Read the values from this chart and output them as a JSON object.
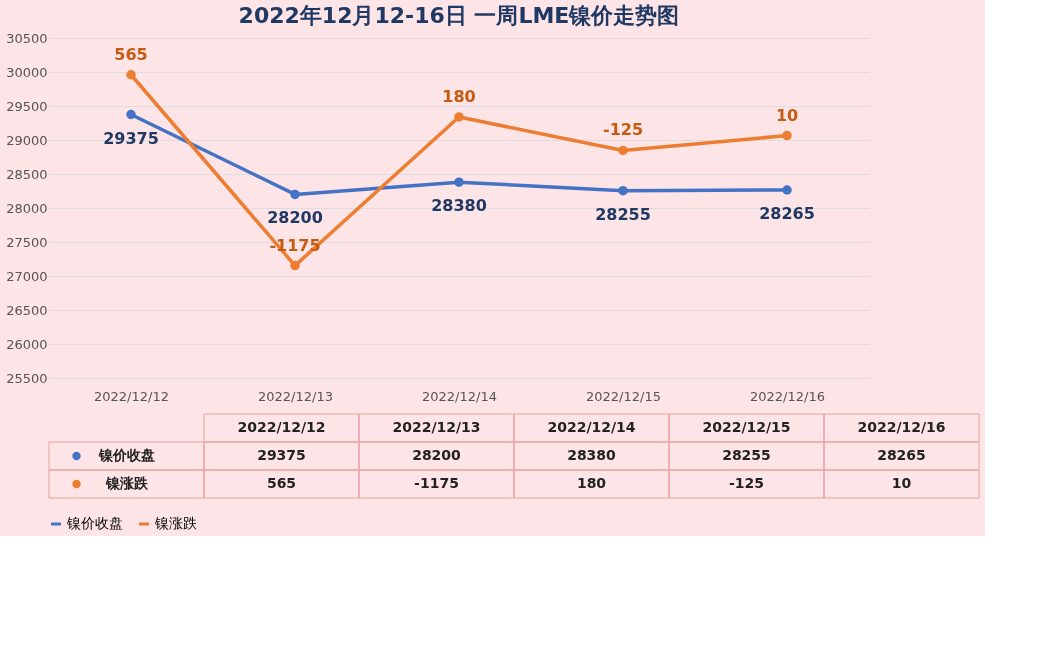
{
  "chart_data": {
    "type": "line",
    "title": "2022年12月12-16日 一周LME镍价走势图",
    "categories": [
      "2022/12/12",
      "2022/12/13",
      "2022/12/14",
      "2022/12/15",
      "2022/12/16"
    ],
    "series": [
      {
        "name": "镍价收盘",
        "color": "#4472c4",
        "values": [
          29375,
          28200,
          28380,
          28255,
          28265
        ],
        "value_labels": [
          "29375",
          "28200",
          "28380",
          "28255",
          "28265"
        ]
      },
      {
        "name": "镍涨跌",
        "color": "#ed7d31",
        "axis": "y2",
        "values": [
          565,
          -1175,
          180,
          -125,
          10
        ],
        "value_labels": [
          "565",
          "-1175",
          "180",
          "-125",
          "10"
        ]
      }
    ],
    "ylim": [
      25500,
      30500
    ],
    "yticks": [
      25500,
      26000,
      26500,
      27000,
      27500,
      28000,
      28500,
      29000,
      29500,
      30000,
      30500
    ],
    "y2lim": [
      -2200,
      900
    ],
    "grid": "y",
    "legend": "bottom",
    "marker": "circle",
    "line_style": "solid"
  }
}
